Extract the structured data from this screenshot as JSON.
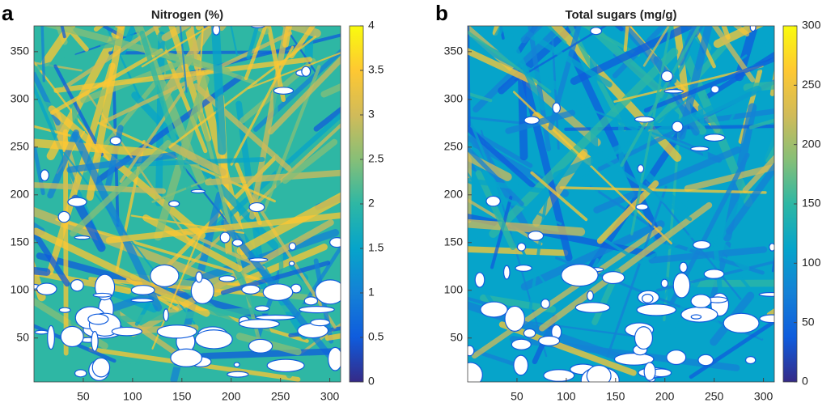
{
  "chart_data": [
    {
      "type": "heatmap",
      "panel_label": "a",
      "title": "Nitrogen (%)",
      "xlim": [
        0,
        311
      ],
      "xticks": [
        50,
        100,
        150,
        200,
        250,
        300
      ],
      "ylim": [
        4,
        377
      ],
      "yticks": [
        50,
        100,
        150,
        200,
        250,
        300,
        350
      ],
      "colorbar_lim": [
        0,
        4
      ],
      "colorbar_ticks": [
        0,
        0.5,
        1,
        1.5,
        2,
        2.5,
        3,
        3.5,
        4
      ],
      "colormap": [
        "#352a87",
        "#0f5cdd",
        "#1481d6",
        "#06a4ca",
        "#2eb7a4",
        "#87bf77",
        "#d1bb59",
        "#fec832",
        "#f9fb0e"
      ]
    },
    {
      "type": "heatmap",
      "panel_label": "b",
      "title": "Total sugars (mg/g)",
      "xlim": [
        0,
        311
      ],
      "xticks": [
        50,
        100,
        150,
        200,
        250,
        300
      ],
      "ylim": [
        4,
        377
      ],
      "yticks": [
        50,
        100,
        150,
        200,
        250,
        300,
        350
      ],
      "colorbar_lim": [
        0,
        300
      ],
      "colorbar_ticks": [
        0,
        50,
        100,
        150,
        200,
        250,
        300
      ],
      "colormap": [
        "#352a87",
        "#0f5cdd",
        "#1481d6",
        "#06a4ca",
        "#2eb7a4",
        "#87bf77",
        "#d1bb59",
        "#fec832",
        "#f9fb0e"
      ]
    }
  ]
}
